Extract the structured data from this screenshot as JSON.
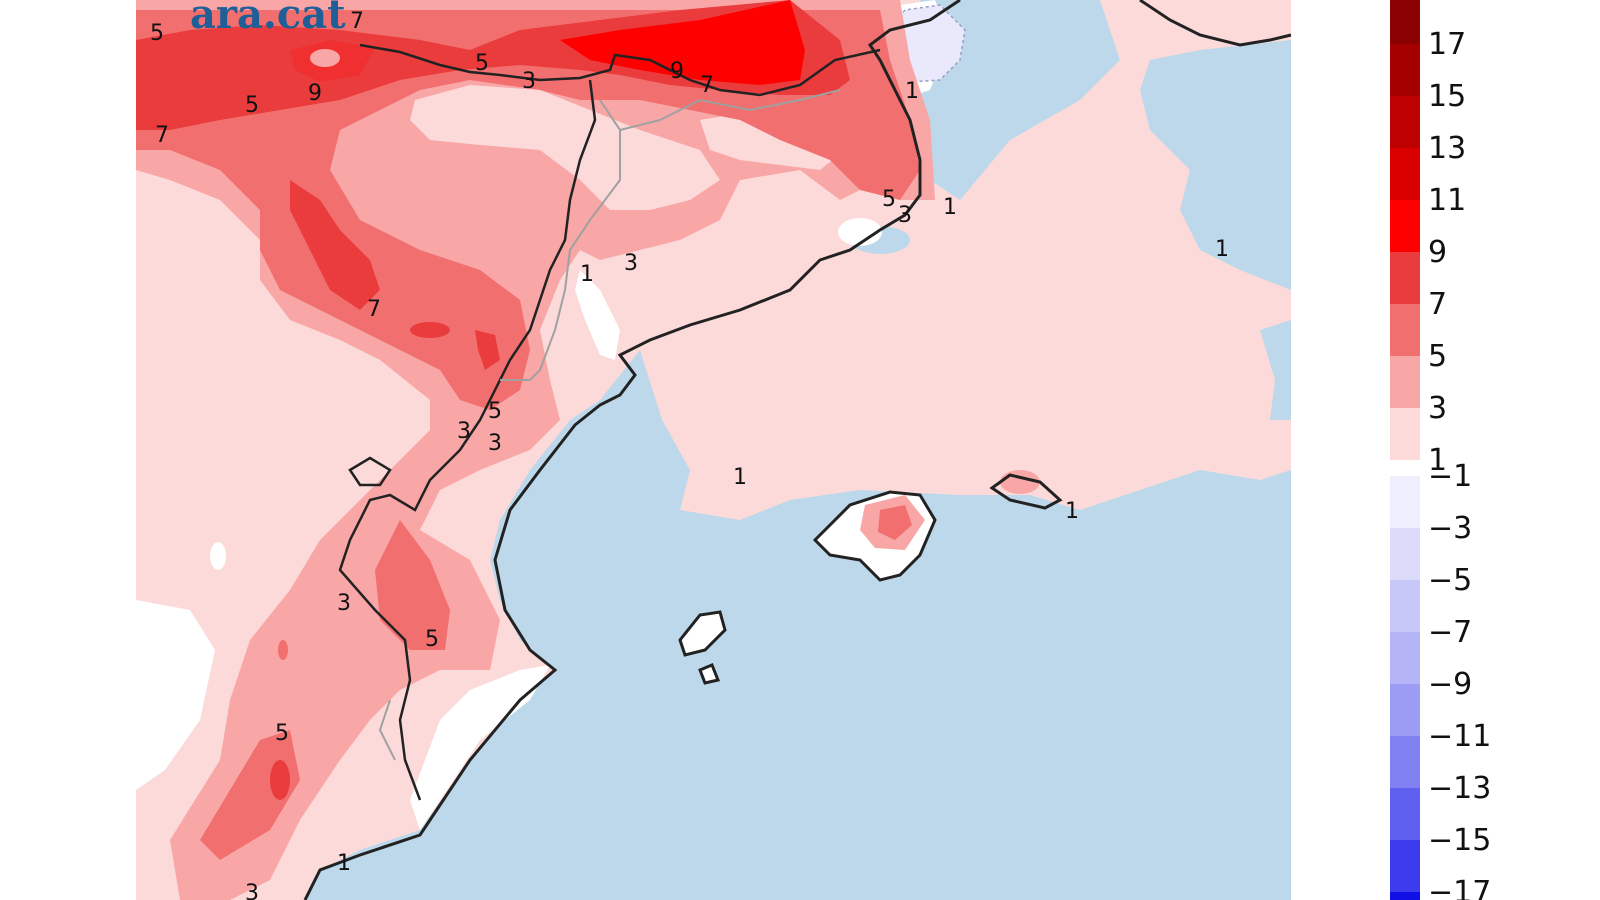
{
  "logo_text": "ara.cat",
  "colors": {
    "sea": "#bcd8ea",
    "no_change": "#ffffff",
    "pos_1_3": "#fcdada",
    "pos_3_5": "#f9a6a6",
    "pos_5_7": "#f26f6f",
    "pos_7_9": "#ea3c3c",
    "pos_9_11": "#ff0000",
    "neg_1_3": "#e9e9fb",
    "border": "#222222",
    "region_border": "#a0a0a0"
  },
  "contour_labels": [
    "5",
    "7",
    "5",
    "3",
    "9",
    "7",
    "5",
    "9",
    "7",
    "1",
    "5",
    "3",
    "1",
    "1",
    "3",
    "1",
    "7",
    "5",
    "3",
    "3",
    "1",
    "1",
    "3",
    "5",
    "5",
    "1",
    "3"
  ],
  "colorbar": {
    "positive": [
      {
        "label": "17",
        "color": "#8b0000"
      },
      {
        "label": "15",
        "color": "#a40000"
      },
      {
        "label": "13",
        "color": "#bf0000"
      },
      {
        "label": "11",
        "color": "#da0000"
      },
      {
        "label": "9",
        "color": "#ff0000"
      },
      {
        "label": "7",
        "color": "#ea3c3c"
      },
      {
        "label": "5",
        "color": "#f26f6f"
      },
      {
        "label": "3",
        "color": "#f9a6a6"
      },
      {
        "label": "1",
        "color": "#fcdada"
      }
    ],
    "negative": [
      {
        "label": "−1",
        "color": "#eeeefc"
      },
      {
        "label": "−3",
        "color": "#dcdcfa"
      },
      {
        "label": "−5",
        "color": "#c8c8f8"
      },
      {
        "label": "−7",
        "color": "#b4b4f6"
      },
      {
        "label": "−9",
        "color": "#9c9cf4"
      },
      {
        "label": "−11",
        "color": "#8080f2"
      },
      {
        "label": "−13",
        "color": "#6060f0"
      },
      {
        "label": "−15",
        "color": "#3c3cee"
      },
      {
        "label": "−17",
        "color": "#1010e6"
      }
    ]
  }
}
